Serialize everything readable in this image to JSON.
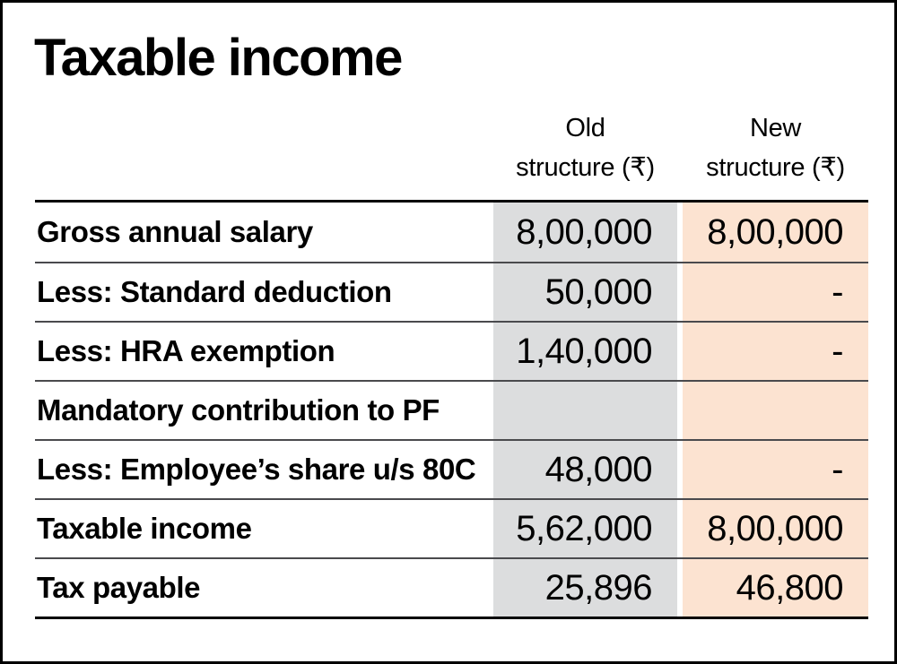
{
  "title": "Taxable income",
  "table": {
    "col_headers": [
      {
        "line1": "Old",
        "line2": "structure (₹)"
      },
      {
        "line1": "New",
        "line2": "structure (₹)"
      }
    ],
    "rows": [
      {
        "label": "Gross annual salary",
        "old": "8,00,000",
        "new": "8,00,000"
      },
      {
        "label": "Less: Standard deduction",
        "old": "50,000",
        "new": "-"
      },
      {
        "label": "Less: HRA exemption",
        "old": "1,40,000",
        "new": "-"
      },
      {
        "label": "Mandatory contribution to PF",
        "old": "",
        "new": ""
      },
      {
        "label": "Less: Employee’s share u/s 80C",
        "old": "48,000",
        "new": "-"
      },
      {
        "label": "Taxable income",
        "old": "5,62,000",
        "new": "8,00,000"
      },
      {
        "label": "Tax payable",
        "old": "25,896",
        "new": "46,800"
      }
    ]
  },
  "colors": {
    "old_column_bg": "#dcddde",
    "new_column_bg": "#fce3d1",
    "row_separator": "#4a4a4d",
    "table_border": "#000000",
    "page_border": "#000000"
  }
}
